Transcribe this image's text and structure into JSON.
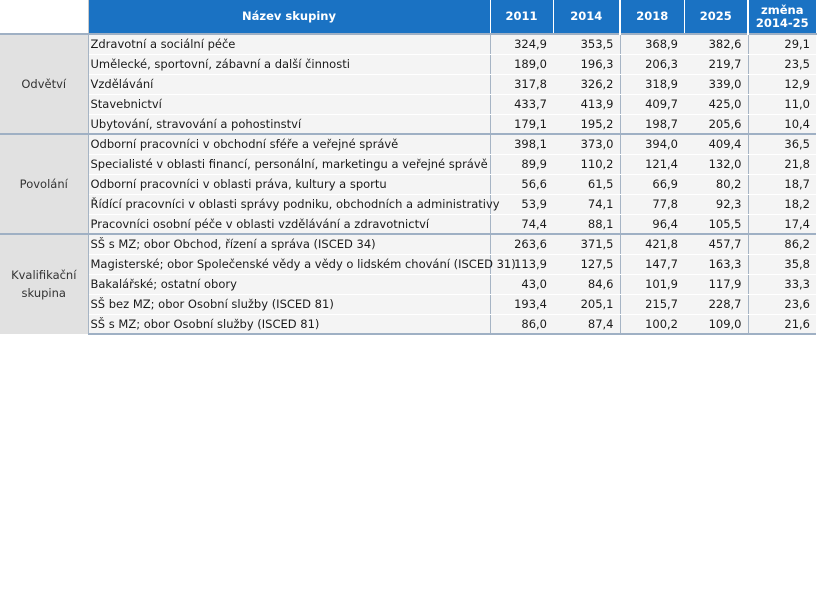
{
  "header": {
    "name": "Název skupiny",
    "y2011": "2011",
    "y2014": "2014",
    "y2018": "2018",
    "y2025": "2025",
    "change_line1": "změna",
    "change_line2": "2014-25"
  },
  "sections": [
    {
      "group": "Odvětví",
      "rows": [
        {
          "name": "Zdravotní a sociální péče",
          "v2011": "324,9",
          "v2014": "353,5",
          "v2018": "368,9",
          "v2025": "382,6",
          "change": "29,1"
        },
        {
          "name": "Umělecké, sportovní, zábavní a další činnosti",
          "v2011": "189,0",
          "v2014": "196,3",
          "v2018": "206,3",
          "v2025": "219,7",
          "change": "23,5"
        },
        {
          "name": "Vzdělávání",
          "v2011": "317,8",
          "v2014": "326,2",
          "v2018": "318,9",
          "v2025": "339,0",
          "change": "12,9"
        },
        {
          "name": "Stavebnictví",
          "v2011": "433,7",
          "v2014": "413,9",
          "v2018": "409,7",
          "v2025": "425,0",
          "change": "11,0"
        },
        {
          "name": "Ubytování, stravování a pohostinství",
          "v2011": "179,1",
          "v2014": "195,2",
          "v2018": "198,7",
          "v2025": "205,6",
          "change": "10,4"
        }
      ]
    },
    {
      "group": "Povolání",
      "rows": [
        {
          "name": "Odborní pracovníci v obchodní sféře a veřejné správě",
          "v2011": "398,1",
          "v2014": "373,0",
          "v2018": "394,0",
          "v2025": "409,4",
          "change": "36,5"
        },
        {
          "name": "Specialisté v oblasti financí, personální, marketingu a veřejné správě",
          "v2011": "89,9",
          "v2014": "110,2",
          "v2018": "121,4",
          "v2025": "132,0",
          "change": "21,8"
        },
        {
          "name": "Odborní pracovníci v oblasti práva, kultury a sportu",
          "v2011": "56,6",
          "v2014": "61,5",
          "v2018": "66,9",
          "v2025": "80,2",
          "change": "18,7"
        },
        {
          "name": "Řídící pracovníci v oblasti správy podniku, obchodních a administrativy",
          "v2011": "53,9",
          "v2014": "74,1",
          "v2018": "77,8",
          "v2025": "92,3",
          "change": "18,2"
        },
        {
          "name": "Pracovníci osobní péče v oblasti vzdělávání a zdravotnictví",
          "v2011": "74,4",
          "v2014": "88,1",
          "v2018": "96,4",
          "v2025": "105,5",
          "change": "17,4"
        }
      ]
    },
    {
      "group": "Kvalifikační skupina",
      "rows": [
        {
          "name": "SŠ s MZ; obor Obchod, řízení a správa (ISCED 34)",
          "v2011": "263,6",
          "v2014": "371,5",
          "v2018": "421,8",
          "v2025": "457,7",
          "change": "86,2"
        },
        {
          "name": "Magisterské; obor Společenské vědy a vědy o lidském chování (ISCED 31)",
          "v2011": "113,9",
          "v2014": "127,5",
          "v2018": "147,7",
          "v2025": "163,3",
          "change": "35,8"
        },
        {
          "name": "Bakalářské; ostatní obory",
          "v2011": "43,0",
          "v2014": "84,6",
          "v2018": "101,9",
          "v2025": "117,9",
          "change": "33,3"
        },
        {
          "name": "SŠ bez MZ; obor Osobní služby (ISCED 81)",
          "v2011": "193,4",
          "v2014": "205,1",
          "v2018": "215,7",
          "v2025": "228,7",
          "change": "23,6"
        },
        {
          "name": "SŠ s MZ; obor Osobní služby (ISCED 81)",
          "v2011": "86,0",
          "v2014": "87,4",
          "v2018": "100,2",
          "v2025": "109,0",
          "change": "21,6"
        }
      ]
    }
  ]
}
